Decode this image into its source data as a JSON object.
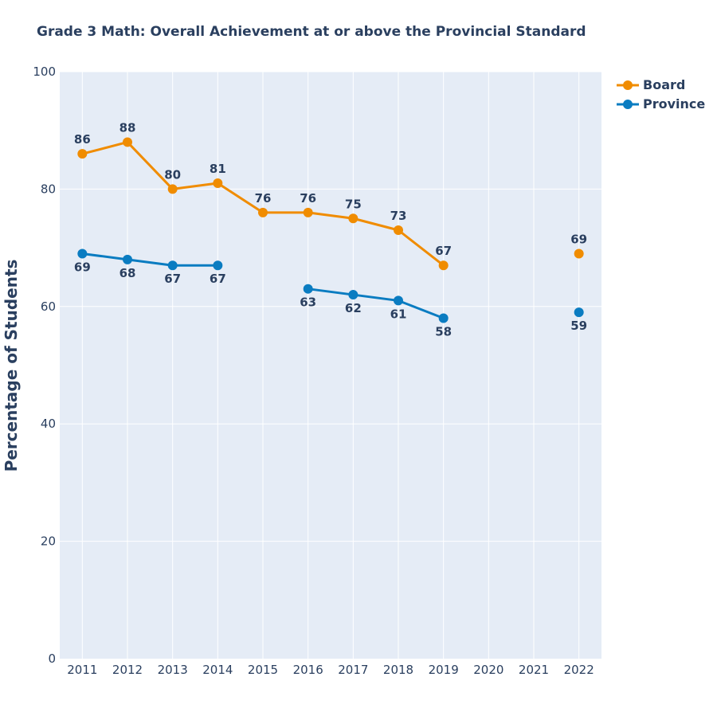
{
  "chart_data": {
    "type": "line",
    "title": "Grade 3 Math: Overall Achievement at or above the Provincial Standard",
    "xlabel": "",
    "ylabel": "Percentage of Students",
    "categories": [
      "2011",
      "2012",
      "2013",
      "2014",
      "2015",
      "2016",
      "2017",
      "2018",
      "2019",
      "2020",
      "2021",
      "2022"
    ],
    "ylim": [
      0,
      100
    ],
    "yticks": [
      0,
      20,
      40,
      60,
      80,
      100
    ],
    "grid": true,
    "legend_position": "top-right",
    "series": [
      {
        "name": "Board",
        "color": "#f08c00",
        "values": [
          86,
          88,
          80,
          81,
          76,
          76,
          75,
          73,
          67,
          null,
          null,
          69
        ],
        "label_position": "above"
      },
      {
        "name": "Province",
        "color": "#0a7cc1",
        "values": [
          69,
          68,
          67,
          67,
          null,
          63,
          62,
          61,
          58,
          null,
          null,
          59
        ],
        "label_position": "below"
      }
    ],
    "plot_background": "#e5ecf6",
    "text_color": "#2a3f5f"
  }
}
